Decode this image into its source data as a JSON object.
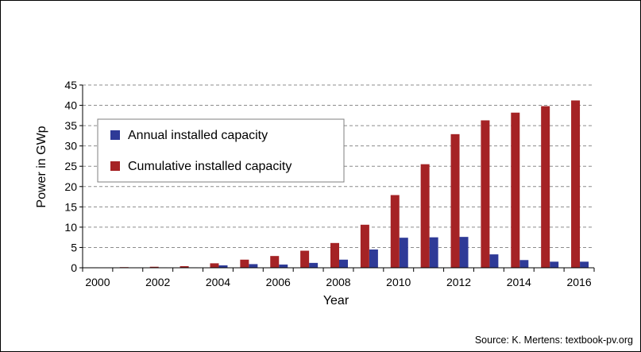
{
  "chart_data": {
    "type": "bar",
    "title": "",
    "xlabel": "Year",
    "ylabel": "Power in GWp",
    "ylim": [
      0,
      45
    ],
    "yticks": [
      0,
      5,
      10,
      15,
      20,
      25,
      30,
      35,
      40,
      45
    ],
    "categories": [
      "2000",
      "2001",
      "2002",
      "2003",
      "2004",
      "2005",
      "2006",
      "2007",
      "2008",
      "2009",
      "2010",
      "2011",
      "2012",
      "2013",
      "2014",
      "2015",
      "2016"
    ],
    "xtick_labels": [
      "2000",
      "",
      "2002",
      "",
      "2004",
      "",
      "2006",
      "",
      "2008",
      "",
      "2010",
      "",
      "2012",
      "",
      "2014",
      "",
      "2016"
    ],
    "grid": "horizontal dashed",
    "legend_position": "upper-left inside plot",
    "series": [
      {
        "name": "Annual installed capacity",
        "color": "#2E3A97",
        "values": [
          0.0,
          0.05,
          0.1,
          0.1,
          0.6,
          0.9,
          0.8,
          1.2,
          2.0,
          4.5,
          7.4,
          7.5,
          7.6,
          3.3,
          1.9,
          1.5,
          1.5
        ]
      },
      {
        "name": "Cumulative installed capacity",
        "color": "#A52325",
        "values": [
          0.1,
          0.15,
          0.25,
          0.4,
          1.1,
          2.0,
          2.9,
          4.2,
          6.1,
          10.6,
          17.9,
          25.5,
          32.9,
          36.3,
          38.2,
          39.8,
          41.2
        ]
      }
    ]
  },
  "footer": {
    "source": "Source: K. Mertens: textbook-pv.org"
  }
}
